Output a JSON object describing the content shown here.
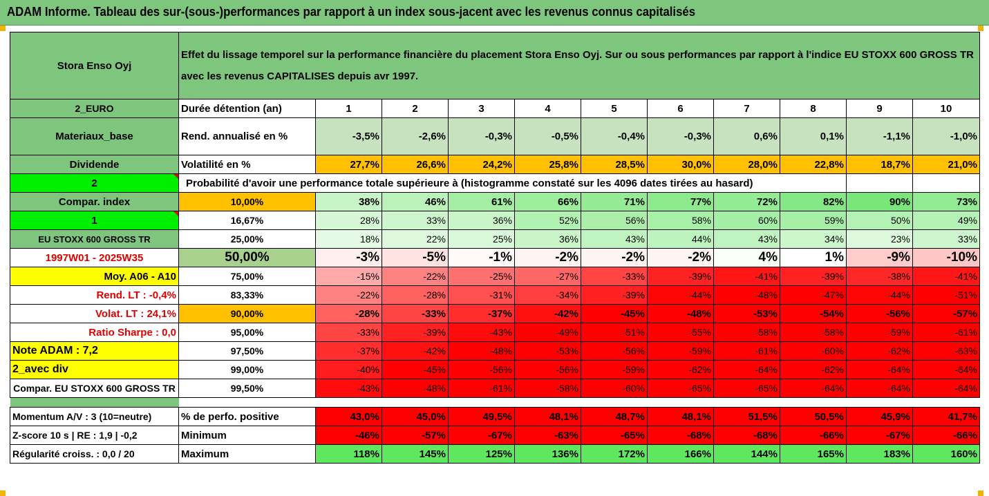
{
  "title": "ADAM Informe. Tableau des sur-(sous-)performances par rapport à un index sous-jacent avec les revenus connus capitalisés",
  "header": {
    "company": "Stora Enso Oyj",
    "description": "Effet du lissage temporel sur la performance financière du placement Stora Enso Oyj. Sur ou sous performances par rapport à l'indice EU STOXX 600 GROSS TR avec les revenus CAPITALISES depuis avr 1997."
  },
  "side": {
    "currency": "2_EURO",
    "sector": "Materiaux_base",
    "dividend": "Dividende",
    "n2": "2",
    "compar_index": "Compar. index",
    "n1": "1",
    "index_name": "EU STOXX 600 GROSS TR",
    "period": "1997W01 - 2025W35",
    "moy": "Moy. A06 - A10",
    "rend_lt": "Rend. LT :   -0,4%",
    "volat_lt": "Volat. LT :   24,1%",
    "sharpe": "Ratio Sharpe :   0,0",
    "note": "Note ADAM : 7,2",
    "avec_div": "2_avec div",
    "compar_full": "Compar. EU STOXX 600 GROSS TR",
    "momentum": "Momentum A/V : 3 (10=neutre)",
    "zscore": "Z-score 10 s  |  RE : 1,9  | -0,2",
    "regularite": "Régularité croiss. : 0,0 / 20"
  },
  "labels": {
    "duree": "Durée détention (an)",
    "rend": "Rend. annualisé en %",
    "vol": "Volatilité en %",
    "proba": "Probabilité d'avoir une performance totale supérieure à (histogramme constaté sur les 4096 dates tirées au hasard)",
    "perfo_pos": "% de perfo. positive",
    "minimum": "Minimum",
    "maximum": "Maximum"
  },
  "years": [
    "1",
    "2",
    "3",
    "4",
    "5",
    "6",
    "7",
    "8",
    "9",
    "10"
  ],
  "rend": [
    "-3,5%",
    "-2,6%",
    "-0,3%",
    "-0,5%",
    "-0,4%",
    "-0,3%",
    "0,6%",
    "0,1%",
    "-1,1%",
    "-1,0%"
  ],
  "vol": [
    "27,7%",
    "26,6%",
    "24,2%",
    "25,8%",
    "28,5%",
    "30,0%",
    "28,0%",
    "22,8%",
    "18,7%",
    "21,0%"
  ],
  "pct_rows": [
    {
      "p": "10,00%",
      "v": [
        "38%",
        "46%",
        "61%",
        "66%",
        "71%",
        "77%",
        "72%",
        "82%",
        "90%",
        "73%"
      ]
    },
    {
      "p": "16,67%",
      "v": [
        "28%",
        "33%",
        "36%",
        "52%",
        "56%",
        "58%",
        "60%",
        "59%",
        "50%",
        "49%"
      ]
    },
    {
      "p": "25,00%",
      "v": [
        "18%",
        "22%",
        "25%",
        "36%",
        "43%",
        "44%",
        "43%",
        "34%",
        "23%",
        "33%"
      ]
    },
    {
      "p": "50,00%",
      "v": [
        "-3%",
        "-5%",
        "-1%",
        "-2%",
        "-2%",
        "-2%",
        "4%",
        "1%",
        "-9%",
        "-10%"
      ]
    },
    {
      "p": "75,00%",
      "v": [
        "-15%",
        "-22%",
        "-25%",
        "-27%",
        "-33%",
        "-39%",
        "-41%",
        "-39%",
        "-38%",
        "-41%"
      ]
    },
    {
      "p": "83,33%",
      "v": [
        "-22%",
        "-28%",
        "-31%",
        "-34%",
        "-39%",
        "-44%",
        "-48%",
        "-47%",
        "-44%",
        "-51%"
      ]
    },
    {
      "p": "90,00%",
      "v": [
        "-28%",
        "-33%",
        "-37%",
        "-42%",
        "-45%",
        "-48%",
        "-53%",
        "-54%",
        "-56%",
        "-57%"
      ]
    },
    {
      "p": "95,00%",
      "v": [
        "-33%",
        "-39%",
        "-43%",
        "-49%",
        "-51%",
        "-55%",
        "-58%",
        "-58%",
        "-59%",
        "-61%"
      ]
    },
    {
      "p": "97,50%",
      "v": [
        "-37%",
        "-42%",
        "-48%",
        "-53%",
        "-56%",
        "-59%",
        "-61%",
        "-60%",
        "-62%",
        "-63%"
      ]
    },
    {
      "p": "99,00%",
      "v": [
        "-40%",
        "-45%",
        "-56%",
        "-56%",
        "-59%",
        "-62%",
        "-64%",
        "-62%",
        "-64%",
        "-64%"
      ]
    },
    {
      "p": "99,50%",
      "v": [
        "-43%",
        "-48%",
        "-61%",
        "-58%",
        "-60%",
        "-65%",
        "-65%",
        "-64%",
        "-64%",
        "-64%"
      ]
    }
  ],
  "perfo_pos": [
    "43,0%",
    "45,0%",
    "49,5%",
    "48,1%",
    "48,7%",
    "48,1%",
    "51,5%",
    "50,5%",
    "45,9%",
    "41,7%"
  ],
  "minimum": [
    "-46%",
    "-57%",
    "-67%",
    "-63%",
    "-65%",
    "-68%",
    "-68%",
    "-66%",
    "-67%",
    "-66%"
  ],
  "maximum": [
    "118%",
    "145%",
    "125%",
    "136%",
    "172%",
    "166%",
    "144%",
    "165%",
    "183%",
    "160%"
  ],
  "colors": {
    "green": "#7ec57e",
    "light_green": "#c6e2bf",
    "orange": "#ffc000",
    "yellow": "#ffff00",
    "red": "#ff0000",
    "bright_green": "#00ee00"
  }
}
